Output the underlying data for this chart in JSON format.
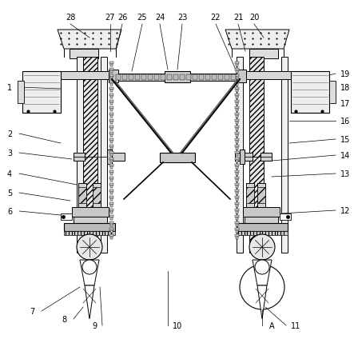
{
  "bg": "#ffffff",
  "lc": "#000000",
  "fig_w": 4.43,
  "fig_h": 4.35,
  "dpi": 100,
  "top_labels": [
    [
      "28",
      88,
      22
    ],
    [
      "27",
      138,
      22
    ],
    [
      "26",
      153,
      22
    ],
    [
      "25",
      178,
      22
    ],
    [
      "24",
      200,
      22
    ],
    [
      "23",
      228,
      22
    ],
    [
      "22",
      270,
      22
    ],
    [
      "21",
      298,
      22
    ],
    [
      "20",
      318,
      22
    ]
  ],
  "left_labels": [
    [
      "1",
      12,
      110
    ],
    [
      "2",
      12,
      168
    ],
    [
      "3",
      12,
      192
    ],
    [
      "4",
      12,
      218
    ],
    [
      "5",
      12,
      242
    ],
    [
      "6",
      12,
      265
    ],
    [
      "7",
      40,
      390
    ],
    [
      "8",
      80,
      400
    ],
    [
      "9",
      118,
      408
    ]
  ],
  "right_labels": [
    [
      "19",
      432,
      93
    ],
    [
      "18",
      432,
      110
    ],
    [
      "17",
      432,
      130
    ],
    [
      "16",
      432,
      152
    ],
    [
      "15",
      432,
      175
    ],
    [
      "14",
      432,
      195
    ],
    [
      "13",
      432,
      218
    ],
    [
      "12",
      432,
      264
    ],
    [
      "11",
      370,
      408
    ],
    [
      "10",
      222,
      408
    ],
    [
      "A",
      340,
      408
    ]
  ]
}
